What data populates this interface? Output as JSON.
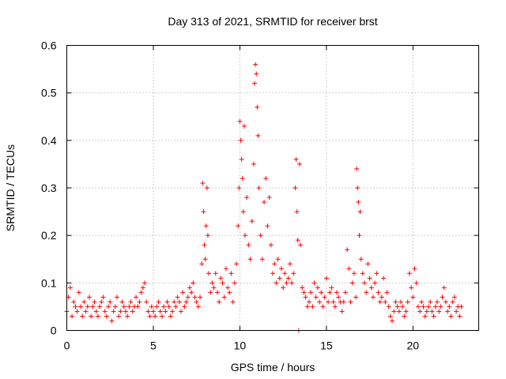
{
  "chart_data": {
    "type": "scatter",
    "title": "Day 313 of 2021, SRMTID for receiver brst",
    "xlabel": "GPS time / hours",
    "ylabel": "SRMTID / TECUs",
    "xlim": [
      0,
      23.8
    ],
    "ylim": [
      0,
      0.6
    ],
    "xticks": [
      0,
      5,
      10,
      15,
      20
    ],
    "yticks": [
      0,
      0.1,
      0.2,
      0.3,
      0.4,
      0.5,
      0.6
    ],
    "xtick_labels": [
      "0",
      "5",
      "10",
      "15",
      "20"
    ],
    "ytick_labels": [
      "0",
      "0.1",
      "0.2",
      "0.3",
      "0.4",
      "0.5",
      "0.6"
    ],
    "grid": true,
    "marker": "+",
    "color": "#ff0000",
    "series": [
      {
        "name": "SRMTID",
        "points": [
          [
            0.0,
            0.04
          ],
          [
            0.1,
            0.07
          ],
          [
            0.2,
            0.09
          ],
          [
            0.3,
            0.03
          ],
          [
            0.4,
            0.06
          ],
          [
            0.5,
            0.05
          ],
          [
            0.6,
            0.04
          ],
          [
            0.7,
            0.08
          ],
          [
            0.8,
            0.05
          ],
          [
            0.9,
            0.03
          ],
          [
            1.0,
            0.06
          ],
          [
            1.1,
            0.04
          ],
          [
            1.2,
            0.05
          ],
          [
            1.3,
            0.07
          ],
          [
            1.4,
            0.03
          ],
          [
            1.5,
            0.05
          ],
          [
            1.6,
            0.06
          ],
          [
            1.7,
            0.04
          ],
          [
            1.8,
            0.03
          ],
          [
            1.9,
            0.05
          ],
          [
            2.0,
            0.06
          ],
          [
            2.1,
            0.07
          ],
          [
            2.2,
            0.04
          ],
          [
            2.3,
            0.03
          ],
          [
            2.4,
            0.05
          ],
          [
            2.5,
            0.06
          ],
          [
            2.6,
            0.02
          ],
          [
            2.7,
            0.04
          ],
          [
            2.8,
            0.05
          ],
          [
            2.9,
            0.07
          ],
          [
            3.0,
            0.03
          ],
          [
            3.1,
            0.04
          ],
          [
            3.2,
            0.06
          ],
          [
            3.3,
            0.05
          ],
          [
            3.4,
            0.04
          ],
          [
            3.5,
            0.03
          ],
          [
            3.6,
            0.05
          ],
          [
            3.7,
            0.06
          ],
          [
            3.8,
            0.04
          ],
          [
            3.9,
            0.05
          ],
          [
            4.0,
            0.07
          ],
          [
            4.1,
            0.05
          ],
          [
            4.2,
            0.06
          ],
          [
            4.3,
            0.08
          ],
          [
            4.4,
            0.09
          ],
          [
            4.5,
            0.1
          ],
          [
            4.6,
            0.06
          ],
          [
            4.7,
            0.04
          ],
          [
            4.8,
            0.03
          ],
          [
            4.9,
            0.05
          ],
          [
            5.0,
            0.04
          ],
          [
            5.1,
            0.03
          ],
          [
            5.2,
            0.05
          ],
          [
            5.3,
            0.06
          ],
          [
            5.4,
            0.04
          ],
          [
            5.5,
            0.03
          ],
          [
            5.6,
            0.05
          ],
          [
            5.7,
            0.04
          ],
          [
            5.8,
            0.06
          ],
          [
            5.9,
            0.05
          ],
          [
            6.0,
            0.03
          ],
          [
            6.1,
            0.04
          ],
          [
            6.2,
            0.06
          ],
          [
            6.3,
            0.05
          ],
          [
            6.4,
            0.07
          ],
          [
            6.5,
            0.06
          ],
          [
            6.6,
            0.04
          ],
          [
            6.7,
            0.08
          ],
          [
            6.8,
            0.05
          ],
          [
            6.9,
            0.06
          ],
          [
            7.0,
            0.07
          ],
          [
            7.1,
            0.09
          ],
          [
            7.2,
            0.08
          ],
          [
            7.3,
            0.1
          ],
          [
            7.4,
            0.07
          ],
          [
            7.5,
            0.06
          ],
          [
            7.6,
            0.05
          ],
          [
            7.7,
            0.07
          ],
          [
            7.8,
            0.14
          ],
          [
            7.85,
            0.31
          ],
          [
            7.9,
            0.25
          ],
          [
            7.95,
            0.18
          ],
          [
            8.0,
            0.15
          ],
          [
            8.05,
            0.22
          ],
          [
            8.1,
            0.3
          ],
          [
            8.15,
            0.2
          ],
          [
            8.2,
            0.12
          ],
          [
            8.3,
            0.08
          ],
          [
            8.4,
            0.1
          ],
          [
            8.5,
            0.09
          ],
          [
            8.6,
            0.12
          ],
          [
            8.7,
            0.08
          ],
          [
            8.8,
            0.06
          ],
          [
            8.9,
            0.11
          ],
          [
            9.0,
            0.1
          ],
          [
            9.1,
            0.07
          ],
          [
            9.2,
            0.13
          ],
          [
            9.3,
            0.09
          ],
          [
            9.4,
            0.08
          ],
          [
            9.5,
            0.12
          ],
          [
            9.6,
            0.06
          ],
          [
            9.7,
            0.1
          ],
          [
            9.8,
            0.14
          ],
          [
            9.9,
            0.22
          ],
          [
            9.95,
            0.3
          ],
          [
            10.0,
            0.44
          ],
          [
            10.05,
            0.4
          ],
          [
            10.1,
            0.36
          ],
          [
            10.15,
            0.32
          ],
          [
            10.2,
            0.25
          ],
          [
            10.25,
            0.43
          ],
          [
            10.3,
            0.2
          ],
          [
            10.4,
            0.28
          ],
          [
            10.5,
            0.18
          ],
          [
            10.6,
            0.15
          ],
          [
            10.7,
            0.23
          ],
          [
            10.8,
            0.35
          ],
          [
            10.85,
            0.52
          ],
          [
            10.9,
            0.56
          ],
          [
            10.95,
            0.54
          ],
          [
            11.0,
            0.47
          ],
          [
            11.05,
            0.41
          ],
          [
            11.1,
            0.3
          ],
          [
            11.2,
            0.2
          ],
          [
            11.3,
            0.15
          ],
          [
            11.4,
            0.27
          ],
          [
            11.5,
            0.32
          ],
          [
            11.6,
            0.22
          ],
          [
            11.7,
            0.28
          ],
          [
            11.8,
            0.18
          ],
          [
            11.9,
            0.12
          ],
          [
            12.0,
            0.14
          ],
          [
            12.1,
            0.1
          ],
          [
            12.2,
            0.15
          ],
          [
            12.3,
            0.11
          ],
          [
            12.4,
            0.13
          ],
          [
            12.5,
            0.09
          ],
          [
            12.6,
            0.12
          ],
          [
            12.7,
            0.1
          ],
          [
            12.8,
            0.11
          ],
          [
            12.9,
            0.14
          ],
          [
            13.0,
            0.1
          ],
          [
            13.1,
            0.12
          ],
          [
            13.2,
            0.3
          ],
          [
            13.25,
            0.36
          ],
          [
            13.3,
            0.25
          ],
          [
            13.35,
            0.19
          ],
          [
            13.4,
            0.0
          ],
          [
            13.45,
            0.35
          ],
          [
            13.5,
            0.18
          ],
          [
            13.6,
            0.09
          ],
          [
            13.7,
            0.08
          ],
          [
            13.8,
            0.07
          ],
          [
            13.9,
            0.05
          ],
          [
            14.0,
            0.06
          ],
          [
            14.1,
            0.08
          ],
          [
            14.2,
            0.05
          ],
          [
            14.3,
            0.1
          ],
          [
            14.4,
            0.07
          ],
          [
            14.5,
            0.09
          ],
          [
            14.6,
            0.06
          ],
          [
            14.7,
            0.08
          ],
          [
            14.8,
            0.05
          ],
          [
            14.9,
            0.07
          ],
          [
            15.0,
            0.11
          ],
          [
            15.1,
            0.06
          ],
          [
            15.2,
            0.08
          ],
          [
            15.3,
            0.09
          ],
          [
            15.4,
            0.06
          ],
          [
            15.5,
            0.05
          ],
          [
            15.6,
            0.08
          ],
          [
            15.7,
            0.07
          ],
          [
            15.8,
            0.06
          ],
          [
            15.9,
            0.04
          ],
          [
            16.0,
            0.06
          ],
          [
            16.1,
            0.08
          ],
          [
            16.2,
            0.17
          ],
          [
            16.3,
            0.13
          ],
          [
            16.4,
            0.06
          ],
          [
            16.5,
            0.1
          ],
          [
            16.6,
            0.12
          ],
          [
            16.7,
            0.07
          ],
          [
            16.75,
            0.34
          ],
          [
            16.8,
            0.3
          ],
          [
            16.85,
            0.27
          ],
          [
            16.9,
            0.2
          ],
          [
            16.95,
            0.25
          ],
          [
            17.0,
            0.15
          ],
          [
            17.1,
            0.12
          ],
          [
            17.2,
            0.1
          ],
          [
            17.3,
            0.08
          ],
          [
            17.4,
            0.14
          ],
          [
            17.5,
            0.11
          ],
          [
            17.6,
            0.09
          ],
          [
            17.7,
            0.07
          ],
          [
            17.8,
            0.1
          ],
          [
            17.9,
            0.12
          ],
          [
            18.0,
            0.08
          ],
          [
            18.1,
            0.06
          ],
          [
            18.2,
            0.07
          ],
          [
            18.3,
            0.11
          ],
          [
            18.4,
            0.06
          ],
          [
            18.5,
            0.08
          ],
          [
            18.6,
            0.05
          ],
          [
            18.7,
            0.03
          ],
          [
            18.8,
            0.02
          ],
          [
            18.9,
            0.04
          ],
          [
            19.0,
            0.06
          ],
          [
            19.1,
            0.05
          ],
          [
            19.2,
            0.04
          ],
          [
            19.3,
            0.06
          ],
          [
            19.4,
            0.05
          ],
          [
            19.5,
            0.03
          ],
          [
            19.6,
            0.04
          ],
          [
            19.7,
            0.06
          ],
          [
            19.8,
            0.12
          ],
          [
            19.9,
            0.09
          ],
          [
            20.0,
            0.07
          ],
          [
            20.1,
            0.13
          ],
          [
            20.2,
            0.1
          ],
          [
            20.3,
            0.05
          ],
          [
            20.4,
            0.04
          ],
          [
            20.5,
            0.06
          ],
          [
            20.6,
            0.05
          ],
          [
            20.7,
            0.03
          ],
          [
            20.8,
            0.04
          ],
          [
            20.9,
            0.05
          ],
          [
            21.0,
            0.06
          ],
          [
            21.1,
            0.04
          ],
          [
            21.2,
            0.03
          ],
          [
            21.3,
            0.05
          ],
          [
            21.4,
            0.06
          ],
          [
            21.5,
            0.04
          ],
          [
            21.6,
            0.05
          ],
          [
            21.7,
            0.07
          ],
          [
            21.8,
            0.09
          ],
          [
            21.9,
            0.06
          ],
          [
            22.0,
            0.04
          ],
          [
            22.1,
            0.05
          ],
          [
            22.2,
            0.03
          ],
          [
            22.3,
            0.06
          ],
          [
            22.4,
            0.07
          ],
          [
            22.5,
            0.04
          ],
          [
            22.6,
            0.05
          ],
          [
            22.7,
            0.03
          ],
          [
            22.8,
            0.05
          ]
        ]
      }
    ]
  }
}
